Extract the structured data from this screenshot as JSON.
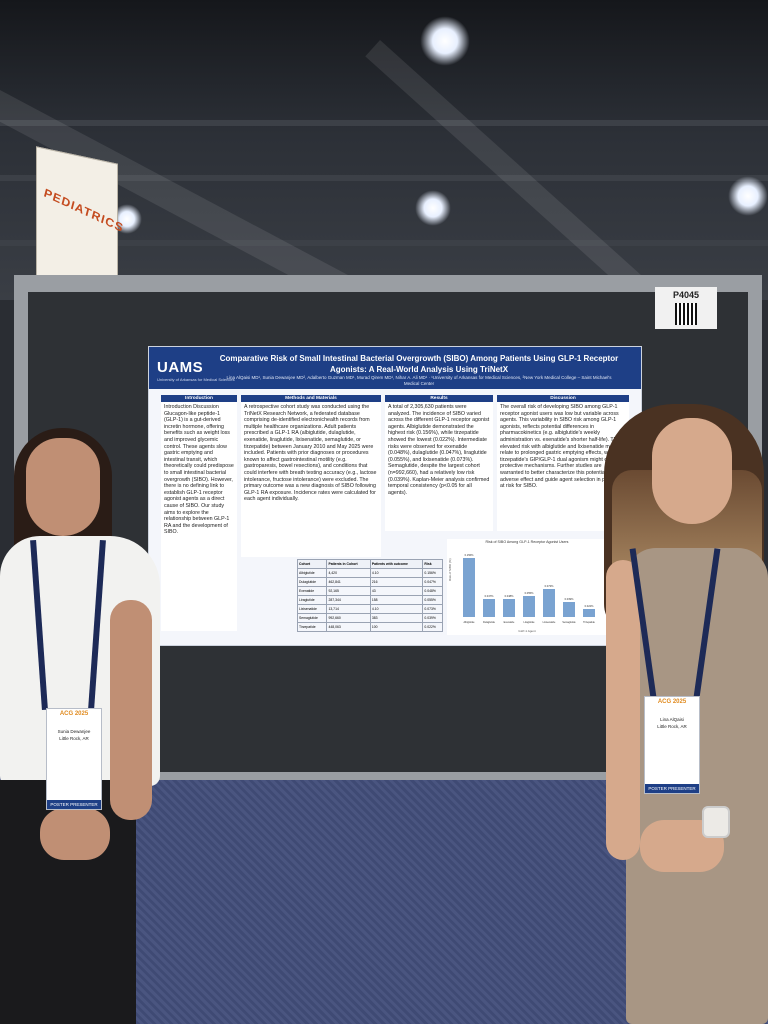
{
  "scene": {
    "section_sign": "PEDIATRICS",
    "booth_number": "P4045"
  },
  "poster": {
    "logo": "UAMS",
    "logo_sub": "University of Arkansas for Medical Sciences",
    "title": "Comparative Risk of Small Intestinal Bacterial Overgrowth (SIBO) Among Patients Using GLP-1 Receptor Agonists: A Real-World Analysis Using TriNetX",
    "authors": "Lina AlQaisi MD¹, Sunia Dewanjee MD², Adalberto Guzman MD¹, Murad Qirem MD¹, Nihar A. Ali MD¹ · ¹University of Arkansas for Medical Sciences, ²New York Medical College – Saint Michael's Medical Center",
    "sections": {
      "introduction": {
        "heading": "Introduction",
        "body": "Introduction Discussion Glucagon-like peptide-1 (GLP-1) is a gut-derived incretin hormone, offering benefits such as weight loss and improved glycemic control. These agents slow gastric emptying and intestinal transit, which theoretically could predispose to small intestinal bacterial overgrowth (SIBO). However, there is no defining link to establish GLP-1 receptor agonist agents as a direct cause of SIBO. Our study aims to explore the relationship between GLP-1 RA and the development of SIBO."
      },
      "methods": {
        "heading": "Methods and Materials",
        "body": "A retrospective cohort study was conducted using the TriNetX Research Network, a federated database comprising de-identified electronichealth records from multiple healthcare organizations. Adult patients prescribed a GLP-1 RA (albiglutide, dulaglutide, exenatide, liraglutide, lixisenatide, semaglutide, or tirzepatide) between January 2010 and May 2025 were included. Patients with prior diagnoses or procedures known to affect gastrointestinal motility (e.g. gastroparesis, bowel resections), and conditions that could interfere with breath testing accuracy (e.g., lactose intolerance, fructose intolerance) were excluded. The primary outcome was a new diagnosis of SIBO following GLP-1 RA exposure. Incidence rates were calculated for each agent individually."
      },
      "results": {
        "heading": "Results",
        "body": "A total of 2,305,630 patients were analyzed. The incidence of SIBO varied across the different GLP-1 receptor agonist agents. Albiglutide demonstrated the highest risk (0.156%), while tirzepatide showed the lowest (0.022%). Intermediate risks were observed for exenatide (0.048%), dulaglutide (0.047%), liraglutide (0.055%), and lixisenatide (0.073%). Semaglutide, despite the largest cohort (n=992,660), had a relatively low risk (0.039%). Kaplan-Meier analysis confirmed temporal consistency (p<0.05 for all agents)."
      },
      "discussion": {
        "heading": "Discussion",
        "body": "The overall risk of developing SIBO among GLP-1 receptor agonist users was low but variable across agents. This variability in SIBO risk among GLP-1 agonists, reflects potential differences in pharmacokinetics (e.g. albiglutide's weekly administration vs. exenatide's shorter half-life). The elevated risk with albiglutide and lixisenatide may relate to prolonged gastric emptying effects, while tirzepatide's GIP/GLP-1 dual agonism might offer protective mechanisms. Further studies are warranted to better characterize this potential adverse effect and guide agent selection in patients at risk for SIBO."
      }
    },
    "table": {
      "headers": [
        "Cohort",
        "Patients in Cohort",
        "Patients with outcome",
        "Risk"
      ],
      "rows": [
        [
          "Albiglutide",
          "4,420",
          "4.10",
          "0.156%"
        ],
        [
          "Dulaglutide",
          "462,841",
          "216",
          "0.047%"
        ],
        [
          "Exenatide",
          "92,165",
          "43",
          "0.048%"
        ],
        [
          "Liraglutide",
          "287,344",
          "158",
          "0.055%"
        ],
        [
          "Lixisenatide",
          "13,714",
          "4.10",
          "0.073%"
        ],
        [
          "Semaglutide",
          "992,660",
          "383",
          "0.039%"
        ],
        [
          "Tirzepatide",
          "448,063",
          "100",
          "0.022%"
        ]
      ]
    },
    "chart_data": {
      "type": "bar",
      "title": "Risk of SIBO Among GLP-1 Receptor Agonist Users",
      "xlabel": "GLP-1 Agent",
      "ylabel": "Risk of SIBO (%)",
      "categories": [
        "Albiglutide",
        "Dulaglutide",
        "Exenatide",
        "Liraglutide",
        "Lixisenatide",
        "Semaglutide",
        "Tirzepatide"
      ],
      "values": [
        0.156,
        0.047,
        0.048,
        0.055,
        0.073,
        0.039,
        0.022
      ],
      "value_labels": [
        "0.156%",
        "0.047%",
        "0.048%",
        "0.055%",
        "0.073%",
        "0.039%",
        "0.022%"
      ],
      "ylim": [
        0,
        0.175
      ],
      "colors": {
        "bar": "#7aa3d1"
      }
    }
  },
  "badges": {
    "left": {
      "event": "ACG 2025",
      "name": "Sunia Dewanjee",
      "location": "Little Rock, AR",
      "footer": "POSTER PRESENTER"
    },
    "right": {
      "event": "ACG 2025",
      "name": "Lina AlQaisi",
      "location": "Little Rock, AR",
      "footer": "POSTER PRESENTER"
    }
  },
  "colors": {
    "poster_header": "#1e3f86",
    "carpet": "#46507c",
    "board": "#2e3135"
  }
}
